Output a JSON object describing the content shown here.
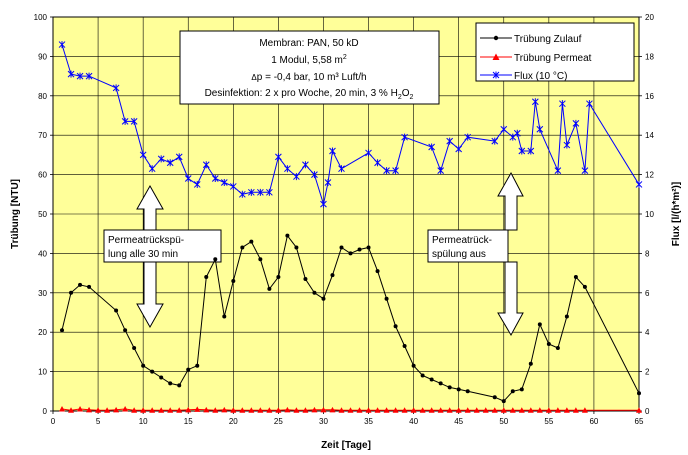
{
  "chart_data": {
    "type": "line",
    "xlabel": "Zeit [Tage]",
    "ylabel": "Trübung [NTU]",
    "y2label": "Flux [l/(h*m²)]",
    "xlim": [
      0,
      65
    ],
    "ylim": [
      0,
      100
    ],
    "y2lim": [
      0,
      20
    ],
    "xticks": [
      0,
      5,
      10,
      15,
      20,
      25,
      30,
      35,
      40,
      45,
      50,
      55,
      60,
      65
    ],
    "yticks": [
      0,
      10,
      20,
      30,
      40,
      50,
      60,
      70,
      80,
      90,
      100
    ],
    "y2ticks": [
      0,
      2,
      4,
      6,
      8,
      10,
      12,
      14,
      16,
      18,
      20
    ],
    "grid": true,
    "legend_position": "top-right",
    "info_box": {
      "line1": "Membran: PAN, 50 kD",
      "line2_main": "1 Modul, 5,58 m",
      "line2_sup": "2",
      "line3_delta": "Δ",
      "line3_rest": "p = -0,4 bar, 10 m³ Luft/h",
      "line4_main": "Desinfektion: 2 x pro Woche, 20 min, 3 % H",
      "line4_sub1": "2",
      "line4_mid": "O",
      "line4_sub2": "2"
    },
    "annotations": [
      {
        "line1": "Permeatrückspü-",
        "line2": "lung alle 30 min"
      },
      {
        "line1": "Permeatrück-",
        "line2": "spülung aus"
      }
    ],
    "series": [
      {
        "name": "Trübung Zulauf",
        "axis": "left",
        "color": "#000000",
        "marker": "circle",
        "x": [
          1,
          2,
          3,
          4,
          7,
          8,
          9,
          10,
          11,
          12,
          13,
          14,
          15,
          16,
          17,
          18,
          19,
          20,
          21,
          22,
          23,
          24,
          25,
          26,
          27,
          28,
          29,
          30,
          31,
          32,
          33,
          34,
          35,
          36,
          37,
          38,
          39,
          40,
          41,
          42,
          43,
          44,
          45,
          46,
          49,
          50,
          51,
          52,
          53,
          54,
          55,
          56,
          57,
          58,
          59,
          65
        ],
        "values": [
          20.5,
          30,
          32,
          31.5,
          25.5,
          20.5,
          16,
          11.5,
          10,
          8.5,
          7,
          6.5,
          10.5,
          11.5,
          34,
          38.5,
          24,
          33,
          41.5,
          43,
          38.5,
          31,
          34,
          44.5,
          41.5,
          33.5,
          30,
          28.5,
          34.5,
          41.5,
          40,
          41,
          41.5,
          35.5,
          28.5,
          21.5,
          16.5,
          11.5,
          9,
          8,
          7,
          6,
          5.5,
          5,
          3.5,
          2.5,
          5,
          5.5,
          12,
          22,
          17,
          16,
          24,
          34,
          31.5,
          4.5
        ]
      },
      {
        "name": "Trübung Permeat",
        "axis": "left",
        "color": "#ff0000",
        "marker": "triangle",
        "x": [
          1,
          2,
          3,
          4,
          5,
          6,
          7,
          8,
          9,
          10,
          11,
          12,
          13,
          14,
          15,
          16,
          17,
          18,
          19,
          20,
          21,
          22,
          23,
          24,
          25,
          26,
          27,
          28,
          29,
          30,
          31,
          32,
          33,
          34,
          35,
          36,
          37,
          38,
          39,
          40,
          41,
          42,
          43,
          44,
          45,
          46,
          47,
          48,
          49,
          50,
          51,
          52,
          53,
          54,
          55,
          56,
          57,
          58,
          59,
          65
        ],
        "values": [
          0.5,
          0.2,
          0.5,
          0.3,
          0.2,
          0.2,
          0.3,
          0.5,
          0.2,
          0.2,
          0.2,
          0.2,
          0.2,
          0.2,
          0.3,
          0.4,
          0.3,
          0.2,
          0.3,
          0.2,
          0.2,
          0.2,
          0.2,
          0.2,
          0.2,
          0.3,
          0.2,
          0.2,
          0.3,
          0.3,
          0.3,
          0.2,
          0.2,
          0.2,
          0.2,
          0.2,
          0.2,
          0.2,
          0.2,
          0.2,
          0.2,
          0.2,
          0.2,
          0.2,
          0.2,
          0.2,
          0.2,
          0.2,
          0.2,
          0.2,
          0.2,
          0.2,
          0.2,
          0.2,
          0.2,
          0.2,
          0.2,
          0.2,
          0.2,
          0.2
        ]
      },
      {
        "name": "Flux (10 °C)",
        "axis": "right",
        "color": "#0000ff",
        "marker": "star",
        "x": [
          1,
          2,
          3,
          4,
          7,
          8,
          9,
          10,
          11,
          12,
          13,
          14,
          15,
          16,
          17,
          18,
          19,
          20,
          21,
          22,
          23,
          24,
          25,
          26,
          27,
          28,
          29,
          30,
          30.5,
          31,
          32,
          35,
          36,
          37,
          38,
          39,
          42,
          43,
          44,
          45,
          46,
          49,
          50,
          51,
          51.5,
          52,
          53,
          53.5,
          54,
          56,
          56.5,
          57,
          58,
          59,
          59.5,
          65
        ],
        "values": [
          18.6,
          17.1,
          17,
          17,
          16.4,
          14.7,
          14.7,
          13,
          12.3,
          12.8,
          12.6,
          12.9,
          11.8,
          11.5,
          12.5,
          11.8,
          11.6,
          11.4,
          11,
          11.1,
          11.1,
          11.1,
          12.9,
          12.3,
          11.9,
          12.5,
          12,
          10.5,
          11.6,
          13.2,
          12.3,
          13.1,
          12.6,
          12.2,
          12.2,
          13.9,
          13.4,
          12.2,
          13.7,
          13.3,
          13.9,
          13.7,
          14.3,
          13.9,
          14.1,
          13.2,
          13.2,
          15.7,
          14.3,
          12.2,
          15.6,
          13.5,
          14.6,
          12.2,
          15.6,
          11.5
        ]
      }
    ]
  }
}
